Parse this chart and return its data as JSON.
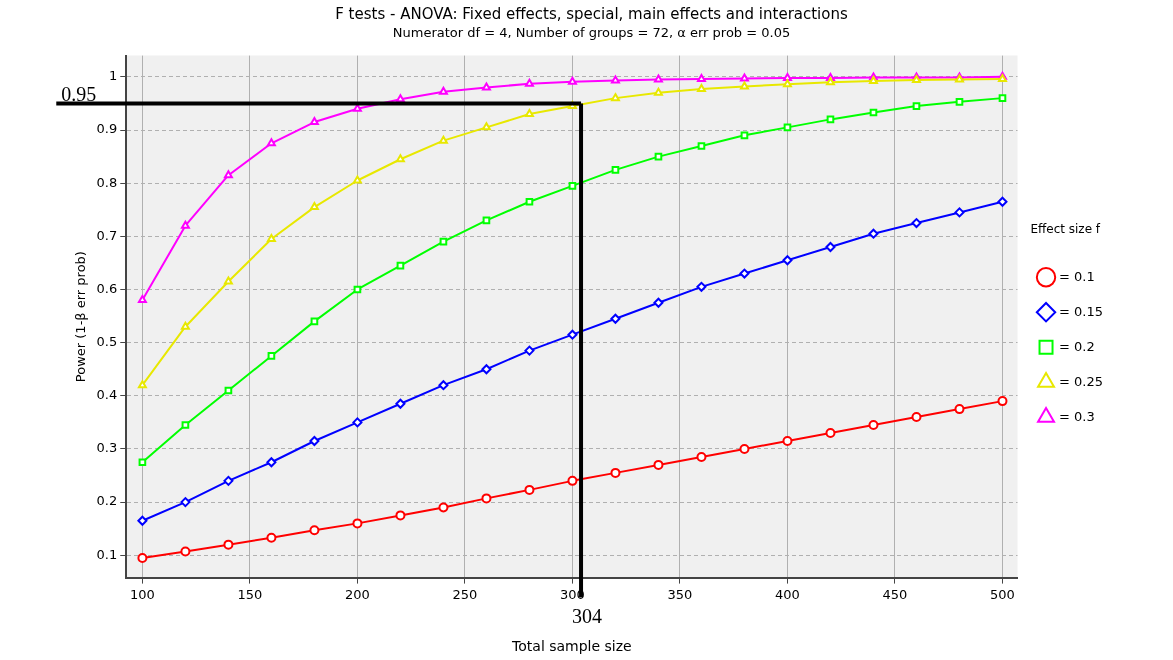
{
  "chart_data": {
    "type": "line",
    "title": "F tests - ANOVA: Fixed effects, special, main effects and interactions",
    "subtitle": "Numerator df = 4, Number of groups = 72, α err prob = 0.05",
    "xlabel": "Total sample size",
    "ylabel": "Power (1-β err prob)",
    "legend_title": "Effect size f",
    "legend": "right",
    "grid": true,
    "x": [
      100,
      120,
      140,
      160,
      180,
      200,
      220,
      240,
      260,
      280,
      300,
      320,
      340,
      360,
      380,
      400,
      420,
      440,
      460,
      480,
      500
    ],
    "xlim": [
      92.5,
      507
    ],
    "xticks": [
      100,
      150,
      200,
      250,
      300,
      350,
      400,
      450,
      500
    ],
    "ylim": [
      0.058,
      1.04
    ],
    "yticks": [
      0.1,
      0.2,
      0.3,
      0.4,
      0.5,
      0.6,
      0.7,
      0.8,
      0.9,
      1
    ],
    "series": [
      {
        "name": "= 0.1",
        "color": "#ff0000",
        "marker": "circle",
        "values": [
          0.095,
          0.107,
          0.12,
          0.133,
          0.147,
          0.16,
          0.175,
          0.19,
          0.207,
          0.223,
          0.24,
          0.255,
          0.27,
          0.285,
          0.3,
          0.315,
          0.33,
          0.345,
          0.36,
          0.375,
          0.39
        ]
      },
      {
        "name": "= 0.15",
        "color": "#0000ff",
        "marker": "diamond",
        "values": [
          0.165,
          0.2,
          0.24,
          0.275,
          0.315,
          0.35,
          0.385,
          0.42,
          0.45,
          0.485,
          0.515,
          0.545,
          0.575,
          0.605,
          0.63,
          0.655,
          0.68,
          0.705,
          0.725,
          0.745,
          0.765
        ]
      },
      {
        "name": "= 0.2",
        "color": "#00ff00",
        "marker": "square",
        "values": [
          0.275,
          0.345,
          0.41,
          0.475,
          0.54,
          0.6,
          0.645,
          0.69,
          0.73,
          0.765,
          0.795,
          0.825,
          0.85,
          0.87,
          0.89,
          0.905,
          0.92,
          0.933,
          0.945,
          0.953,
          0.96
        ]
      },
      {
        "name": "= 0.25",
        "color": "#e8e800",
        "marker": "triangle",
        "values": [
          0.42,
          0.53,
          0.615,
          0.695,
          0.755,
          0.805,
          0.845,
          0.88,
          0.905,
          0.93,
          0.945,
          0.96,
          0.97,
          0.977,
          0.982,
          0.986,
          0.99,
          0.992,
          0.994,
          0.995,
          0.996
        ]
      },
      {
        "name": "= 0.3",
        "color": "#ff00ff",
        "marker": "triangle",
        "values": [
          0.58,
          0.72,
          0.815,
          0.875,
          0.915,
          0.94,
          0.958,
          0.972,
          0.98,
          0.987,
          0.991,
          0.993,
          0.995,
          0.996,
          0.997,
          0.998,
          0.998,
          0.999,
          0.999,
          0.999,
          1
        ]
      }
    ],
    "ref_lines": [
      {
        "axis": "y",
        "value": 0.95,
        "label": "0.95",
        "color": "#000000"
      },
      {
        "axis": "x",
        "value": 304,
        "label": "304",
        "color": "#000000"
      }
    ]
  }
}
